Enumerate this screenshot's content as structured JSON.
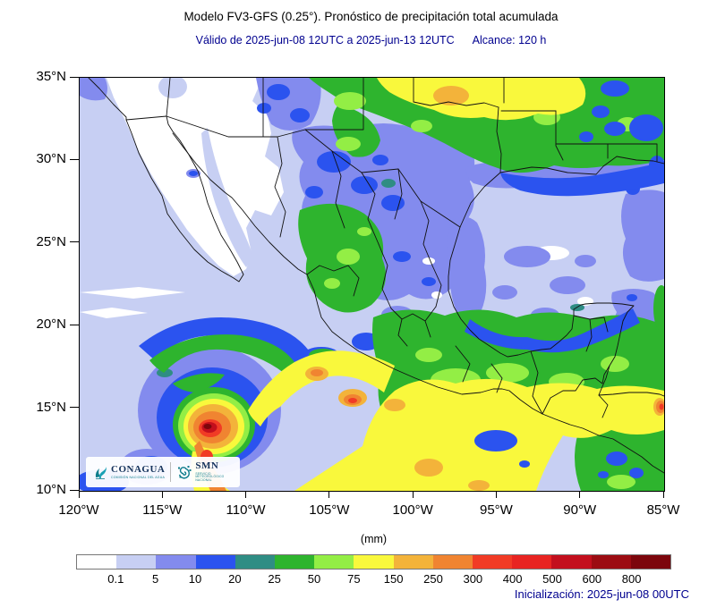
{
  "header": {
    "title": "Modelo FV3-GFS (0.25°). Pronóstico de precipitación total acumulada",
    "valid_text": "Válido de 2025-jun-08 12UTC a 2025-jun-13 12UTC",
    "alcance_text": "Alcance: 120 h"
  },
  "map": {
    "lat_ticks": [
      "35°N",
      "30°N",
      "25°N",
      "20°N",
      "15°N",
      "10°N"
    ],
    "lon_ticks": [
      "120°W",
      "115°W",
      "110°W",
      "105°W",
      "100°W",
      "95°W",
      "90°W",
      "85°W"
    ]
  },
  "logos": {
    "conagua_name": "CONAGUA",
    "conagua_subtitle": "COMISIÓN NACIONAL DEL AGUA",
    "smn_name": "SMN",
    "smn_subtitle": "SERVICIO METEOROLÓGICO NACIONAL"
  },
  "legend": {
    "units": "(mm)",
    "values": [
      "0.1",
      "5",
      "10",
      "20",
      "25",
      "50",
      "75",
      "150",
      "250",
      "300",
      "400",
      "500",
      "600",
      "800"
    ],
    "colors": [
      "#ffffff",
      "#c7cff3",
      "#838bee",
      "#2b53ef",
      "#2f8d84",
      "#2eb42e",
      "#93ee45",
      "#f9f83c",
      "#f3b33a",
      "#f08431",
      "#f13b25",
      "#e82421",
      "#c30f1d",
      "#9c0c12",
      "#7c060c"
    ]
  },
  "footer": {
    "initialization": "Inicialización: 2025-jun-08 00UTC"
  }
}
